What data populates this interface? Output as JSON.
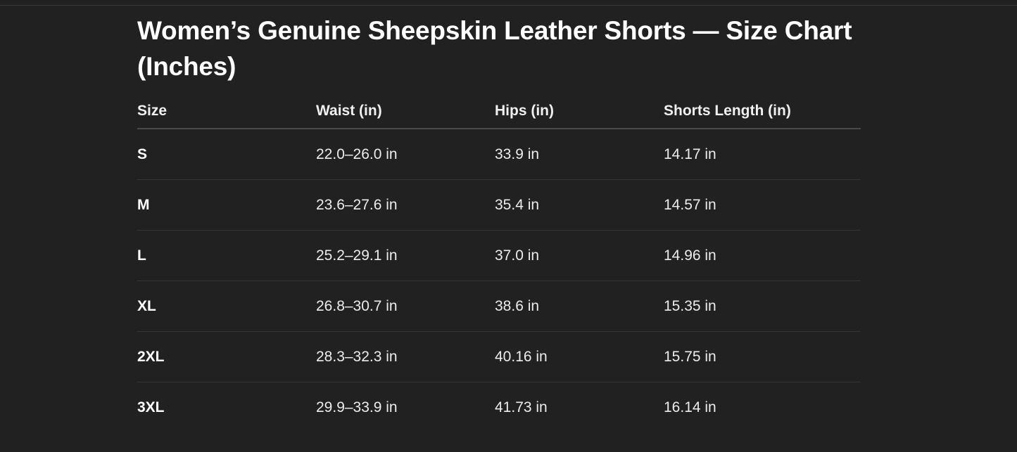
{
  "title": "Women’s Genuine Sheepskin Leather Shorts — Size Chart (Inches)",
  "table": {
    "headers": [
      "Size",
      "Waist (in)",
      "Hips (in)",
      "Shorts Length (in)"
    ],
    "rows": [
      [
        "S",
        "22.0–26.0 in",
        "33.9 in",
        "14.17 in"
      ],
      [
        "M",
        "23.6–27.6 in",
        "35.4 in",
        "14.57 in"
      ],
      [
        "L",
        "25.2–29.1 in",
        "37.0 in",
        "14.96 in"
      ],
      [
        "XL",
        "26.8–30.7 in",
        "38.6 in",
        "15.35 in"
      ],
      [
        "2XL",
        "28.3–32.3 in",
        "40.16 in",
        "15.75 in"
      ],
      [
        "3XL",
        "29.9–33.9 in",
        "41.73 in",
        "16.14 in"
      ]
    ]
  }
}
